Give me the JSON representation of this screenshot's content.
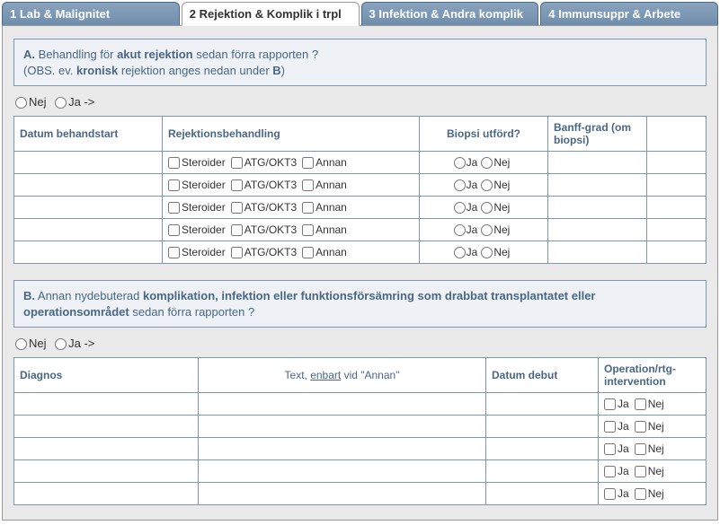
{
  "tabs": [
    {
      "label": "1 Lab & Malignitet"
    },
    {
      "label": "2 Rejektion & Komplik i trpl"
    },
    {
      "label": "3 Infektion & Andra komplik"
    },
    {
      "label": "4 Immunsuppr & Arbete"
    }
  ],
  "sectionA": {
    "label_prefix": "A.",
    "text_pre": " Behandling för ",
    "bold1": "akut rejektion",
    "text_mid": " sedan förra rapporten ?",
    "line2_pre": "(OBS. ev. ",
    "bold2": "kronisk",
    "line2_post": " rejektion anges nedan under ",
    "bold3": "B",
    "line2_end": ")"
  },
  "radio": {
    "nej": "Nej",
    "ja": "Ja ->"
  },
  "tableA": {
    "headers": {
      "datum": "Datum behandstart",
      "rej": "Rejektionsbehandling",
      "biopsi": "Biopsi utförd?",
      "banff": "Banff-grad (om biopsi)",
      "extra": ""
    },
    "options": {
      "steroider": "Steroider",
      "atgokt3": "ATG/OKT3",
      "annan": "Annan",
      "ja": "Ja",
      "nej": "Nej"
    },
    "rowCount": 5
  },
  "sectionB": {
    "label_prefix": "B.",
    "text_pre": " Annan nydebuterad ",
    "bold1": "komplikation, infektion eller funktionsförsämring som drabbat transplantatet eller operationsområdet",
    "text_post": " sedan förra rapporten ?"
  },
  "tableB": {
    "headers": {
      "diagnos": "Diagnos",
      "text_pre": "Text, ",
      "text_under": "enbart",
      "text_post": " vid \"Annan\"",
      "datum": "Datum debut",
      "op": "Operation/rtg-intervention"
    },
    "options": {
      "ja": "Ja",
      "nej": "Nej"
    },
    "rowCount": 5
  }
}
